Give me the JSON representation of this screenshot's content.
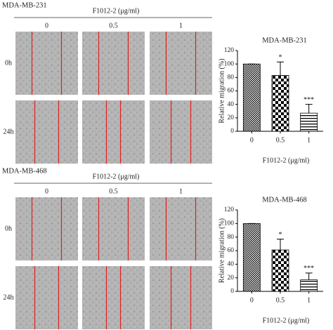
{
  "panels": [
    {
      "cell_line": "MDA-MB-231",
      "treatment_label": "F1012-2 (μg/ml)",
      "concentrations": [
        "0",
        "0.5",
        "1"
      ],
      "timepoints": [
        "0h",
        "24h"
      ]
    },
    {
      "cell_line": "MDA-MB-468",
      "treatment_label": "F1012-2 (μg/ml)",
      "concentrations": [
        "0",
        "0.5",
        "1"
      ],
      "timepoints": [
        "0h",
        "24h"
      ]
    }
  ],
  "chart_data": [
    {
      "type": "bar",
      "title": "MDA-MB-231",
      "categories": [
        "0",
        "0.5",
        "1"
      ],
      "values": [
        100,
        83,
        27
      ],
      "errors": [
        0,
        20,
        13
      ],
      "annotations": [
        null,
        "*",
        "***"
      ],
      "patterns": [
        "grid",
        "checker",
        "hlines"
      ],
      "xlabel": "F1012-2 (μg/ml)",
      "ylabel": "Relative migration (%)",
      "ylim": [
        0,
        120
      ],
      "yticks": [
        0,
        20,
        40,
        60,
        80,
        100,
        120
      ]
    },
    {
      "type": "bar",
      "title": "MDA-MB-468",
      "categories": [
        "0",
        "0.5",
        "1"
      ],
      "values": [
        100,
        61,
        17
      ],
      "errors": [
        0,
        16,
        10
      ],
      "annotations": [
        null,
        "*",
        "***"
      ],
      "patterns": [
        "grid",
        "checker",
        "hlines"
      ],
      "xlabel": "F1012-2 (μg/ml)",
      "ylabel": "Relative migration (%)",
      "ylim": [
        0,
        120
      ],
      "yticks": [
        0,
        20,
        40,
        60,
        80,
        100,
        120
      ]
    }
  ]
}
